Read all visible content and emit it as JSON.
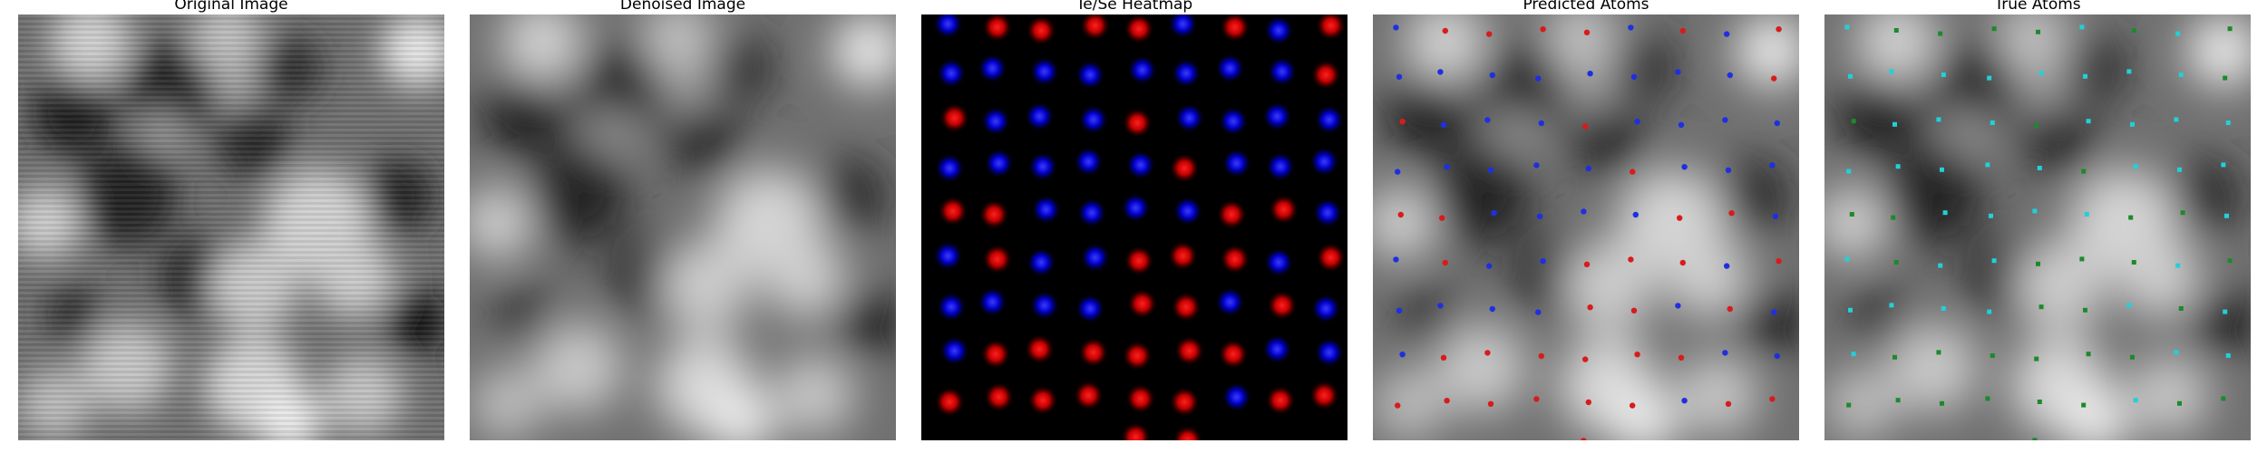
{
  "figure": {
    "panels": [
      {
        "id": "original",
        "title": "Original Image"
      },
      {
        "id": "denoised",
        "title": "Denoised Image"
      },
      {
        "id": "heatmap",
        "title": "Te/Se Heatmap"
      },
      {
        "id": "predicted",
        "title": "Predicted Atoms"
      },
      {
        "id": "true",
        "title": "True Atoms"
      }
    ],
    "colors": {
      "te": "#d81b1b",
      "se": "#1f2fe0",
      "true_a": "#22d0d8",
      "true_b": "#1b8a2b"
    }
  }
}
